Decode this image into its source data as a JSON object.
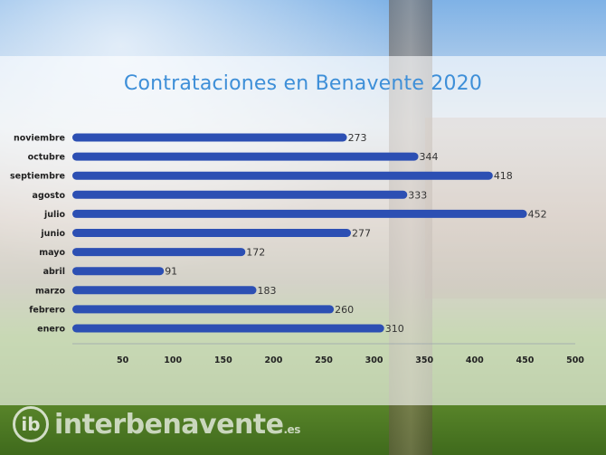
{
  "chart_data": {
    "type": "bar",
    "orientation": "horizontal",
    "title": "Contrataciones en Benavente 2020",
    "categories": [
      "noviembre",
      "octubre",
      "septiembre",
      "agosto",
      "julio",
      "junio",
      "mayo",
      "abril",
      "marzo",
      "febrero",
      "enero"
    ],
    "values": [
      273,
      344,
      418,
      333,
      452,
      277,
      172,
      91,
      183,
      260,
      310
    ],
    "xlim": [
      0,
      500
    ],
    "xticks": [
      50,
      100,
      150,
      200,
      250,
      300,
      350,
      400,
      450,
      500
    ],
    "grid": false,
    "bar_color": "#2c4fb3"
  },
  "watermark": {
    "mark": "ib",
    "text": "interbenavente",
    "suffix": ".es"
  }
}
